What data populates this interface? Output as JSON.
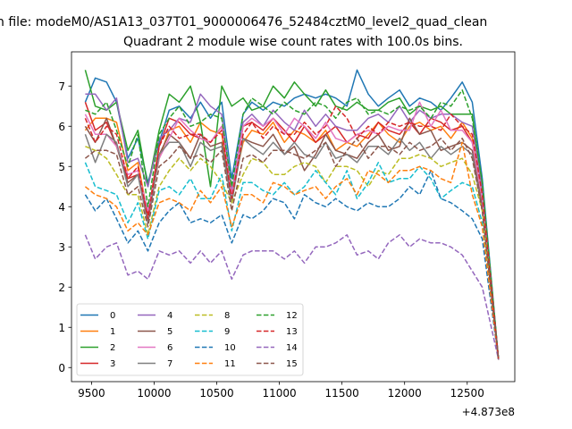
{
  "chart_data": {
    "type": "line",
    "suptitle": "n file: modeM0/AS1A13_037T01_9000006476_52484cztM0_level2_quad_clean",
    "title": "Quadrant 2 module wise count rates with 100.0s bins.",
    "xlabel": "",
    "ylabel": "",
    "x_offset_label": "+4.873e8",
    "xlim": [
      9340,
      12880
    ],
    "ylim": [
      -0.35,
      7.85
    ],
    "x_ticks": [
      9500,
      10000,
      10500,
      11000,
      11500,
      12000,
      12500
    ],
    "x_tick_labels": [
      "9500",
      "10000",
      "10500",
      "11000",
      "11500",
      "12000",
      "12500"
    ],
    "y_ticks": [
      0,
      1,
      2,
      3,
      4,
      5,
      6,
      7
    ],
    "y_tick_labels": [
      "0",
      "1",
      "2",
      "3",
      "4",
      "5",
      "6",
      "7"
    ],
    "grid": false,
    "legend_position": "lower-left",
    "x": [
      9450,
      9530,
      9620,
      9700,
      9790,
      9870,
      9950,
      10040,
      10120,
      10200,
      10290,
      10370,
      10450,
      10540,
      10620,
      10710,
      10780,
      10870,
      10950,
      11040,
      11120,
      11200,
      11290,
      11370,
      11450,
      11540,
      11620,
      11710,
      11790,
      11870,
      11960,
      12040,
      12120,
      12210,
      12290,
      12370,
      12460,
      12540,
      12620,
      12750
    ],
    "series": [
      {
        "name": "0",
        "color": "#1f77b4",
        "dash": "solid",
        "values": [
          6.6,
          7.2,
          7.1,
          6.6,
          5.2,
          5.7,
          4.6,
          5.6,
          6.4,
          6.5,
          6.2,
          6.6,
          6.2,
          6.6,
          4.7,
          6.3,
          6.6,
          6.4,
          6.6,
          6.5,
          6.7,
          6.8,
          6.7,
          6.8,
          6.7,
          6.5,
          7.4,
          6.8,
          6.5,
          6.7,
          6.9,
          6.5,
          6.7,
          6.6,
          6.4,
          6.7,
          7.1,
          6.6,
          4.7,
          0.2
        ]
      },
      {
        "name": "1",
        "color": "#ff7f0e",
        "dash": "solid",
        "values": [
          5.9,
          6.2,
          6.2,
          6.1,
          4.9,
          5.1,
          3.8,
          5.2,
          5.9,
          6.0,
          5.6,
          6.1,
          5.9,
          5.8,
          4.3,
          5.6,
          5.9,
          5.8,
          6.1,
          5.6,
          5.9,
          5.8,
          5.6,
          5.9,
          5.4,
          5.6,
          5.5,
          5.8,
          6.1,
          5.8,
          5.6,
          6.0,
          6.1,
          5.9,
          6.0,
          5.7,
          6.1,
          5.7,
          4.2,
          0.2
        ]
      },
      {
        "name": "2",
        "color": "#2ca02c",
        "dash": "solid",
        "values": [
          7.4,
          6.5,
          6.4,
          6.6,
          5.4,
          5.9,
          4.5,
          5.9,
          6.8,
          6.6,
          7.0,
          6.1,
          4.5,
          7.0,
          6.5,
          6.7,
          6.4,
          6.5,
          7.0,
          6.7,
          7.1,
          6.8,
          6.5,
          6.9,
          6.5,
          6.4,
          6.6,
          6.4,
          6.4,
          6.6,
          6.7,
          6.3,
          6.5,
          6.4,
          6.5,
          6.3,
          6.3,
          6.3,
          4.5,
          0.2
        ]
      },
      {
        "name": "3",
        "color": "#d62728",
        "dash": "solid",
        "values": [
          6.6,
          5.9,
          6.1,
          5.5,
          4.7,
          4.8,
          3.8,
          5.5,
          6.2,
          6.1,
          5.8,
          5.7,
          5.6,
          6.0,
          4.3,
          6.0,
          6.1,
          5.9,
          6.2,
          5.9,
          5.6,
          6.0,
          5.6,
          5.8,
          6.0,
          5.6,
          5.8,
          5.7,
          6.1,
          5.9,
          5.8,
          6.1,
          5.8,
          6.2,
          6.1,
          5.9,
          6.0,
          5.6,
          4.2,
          0.2
        ]
      },
      {
        "name": "4",
        "color": "#9467bd",
        "dash": "solid",
        "values": [
          6.8,
          6.8,
          6.4,
          6.7,
          5.1,
          5.2,
          4.5,
          5.7,
          5.9,
          6.2,
          6.1,
          6.8,
          6.5,
          6.3,
          4.4,
          6.1,
          6.3,
          6.0,
          6.4,
          6.1,
          5.9,
          6.4,
          6.0,
          6.3,
          6.0,
          5.9,
          5.9,
          6.2,
          6.3,
          6.1,
          6.5,
          6.1,
          6.4,
          6.2,
          6.3,
          6.3,
          6.1,
          6.0,
          4.4,
          0.2
        ]
      },
      {
        "name": "5",
        "color": "#8c564b",
        "dash": "solid",
        "values": [
          6.0,
          5.6,
          6.2,
          5.5,
          4.6,
          4.8,
          3.6,
          5.3,
          5.8,
          5.6,
          5.2,
          5.8,
          5.5,
          5.6,
          4.2,
          5.7,
          5.6,
          5.5,
          5.8,
          5.3,
          5.5,
          4.9,
          5.3,
          5.8,
          5.4,
          5.3,
          5.2,
          5.6,
          5.8,
          5.4,
          5.5,
          6.2,
          5.8,
          5.9,
          5.4,
          5.5,
          5.6,
          5.4,
          4.0,
          0.2
        ]
      },
      {
        "name": "6",
        "color": "#e377c2",
        "dash": "solid",
        "values": [
          6.3,
          5.8,
          5.8,
          5.5,
          4.8,
          4.9,
          3.9,
          5.2,
          5.7,
          6.2,
          5.9,
          5.7,
          5.6,
          6.0,
          4.3,
          6.0,
          6.2,
          6.0,
          6.2,
          5.8,
          6.2,
          6.0,
          5.7,
          6.1,
          5.7,
          5.6,
          5.8,
          5.9,
          5.8,
          6.0,
          5.9,
          5.9,
          6.6,
          6.0,
          6.4,
          5.9,
          5.9,
          5.6,
          4.2,
          0.2
        ]
      },
      {
        "name": "7",
        "color": "#7f7f7f",
        "dash": "solid",
        "values": [
          5.8,
          5.1,
          5.8,
          5.6,
          4.5,
          4.8,
          3.6,
          5.3,
          5.6,
          5.6,
          5.0,
          5.6,
          5.4,
          5.5,
          4.1,
          5.7,
          5.5,
          5.3,
          5.6,
          5.3,
          5.6,
          5.3,
          5.2,
          5.6,
          5.2,
          5.3,
          5.1,
          5.5,
          5.5,
          5.3,
          5.7,
          5.4,
          5.6,
          5.2,
          5.5,
          5.3,
          5.5,
          5.3,
          3.9,
          0.2
        ]
      },
      {
        "name": "8",
        "color": "#bcbd22",
        "dash": "dashed",
        "values": [
          5.5,
          5.4,
          5.2,
          4.8,
          4.3,
          4.3,
          3.3,
          4.5,
          4.9,
          5.2,
          4.9,
          5.2,
          5.0,
          4.6,
          4.1,
          4.8,
          5.2,
          5.1,
          4.8,
          4.8,
          5.0,
          5.1,
          5.0,
          4.6,
          5.0,
          5.0,
          4.9,
          4.5,
          4.9,
          4.8,
          5.2,
          5.2,
          5.3,
          5.2,
          5.0,
          5.1,
          5.2,
          4.8,
          3.9,
          0.2
        ]
      },
      {
        "name": "9",
        "color": "#17becf",
        "dash": "dashed",
        "values": [
          5.1,
          4.5,
          4.4,
          4.3,
          3.6,
          4.1,
          3.2,
          4.4,
          4.5,
          4.3,
          4.7,
          4.2,
          4.2,
          4.8,
          3.4,
          4.6,
          4.6,
          4.4,
          4.3,
          4.6,
          4.3,
          4.5,
          4.9,
          4.6,
          4.3,
          4.9,
          4.2,
          4.6,
          5.1,
          4.6,
          4.7,
          4.7,
          5.0,
          4.7,
          4.2,
          4.4,
          4.6,
          4.5,
          3.6,
          0.2
        ]
      },
      {
        "name": "10",
        "color": "#1f77b4",
        "dash": "dashed",
        "values": [
          4.3,
          3.9,
          4.2,
          3.7,
          3.1,
          3.4,
          2.9,
          3.6,
          3.9,
          4.1,
          3.6,
          3.7,
          3.6,
          3.8,
          3.1,
          3.8,
          3.7,
          3.9,
          4.2,
          4.1,
          3.7,
          4.3,
          4.1,
          4.0,
          4.2,
          4.0,
          3.9,
          4.1,
          4.0,
          4.0,
          4.2,
          4.5,
          4.3,
          4.9,
          4.2,
          4.1,
          3.9,
          3.7,
          3.2,
          0.2
        ]
      },
      {
        "name": "11",
        "color": "#ff7f0e",
        "dash": "dashed",
        "values": [
          4.5,
          4.3,
          4.2,
          4.0,
          3.4,
          3.6,
          3.3,
          4.1,
          4.2,
          4.1,
          3.9,
          4.4,
          4.1,
          4.5,
          3.5,
          4.3,
          4.3,
          4.1,
          4.6,
          4.5,
          4.3,
          4.4,
          4.5,
          4.2,
          4.5,
          4.7,
          4.3,
          4.9,
          4.8,
          4.6,
          4.9,
          4.9,
          5.0,
          4.9,
          4.7,
          4.6,
          5.6,
          4.3,
          3.5,
          0.2
        ]
      },
      {
        "name": "12",
        "color": "#2ca02c",
        "dash": "dashed",
        "values": [
          6.4,
          6.3,
          6.6,
          5.9,
          5.0,
          5.8,
          4.0,
          5.8,
          6.2,
          6.5,
          6.0,
          6.1,
          6.3,
          6.2,
          4.5,
          6.3,
          6.7,
          6.5,
          6.3,
          6.6,
          6.4,
          6.3,
          6.6,
          6.5,
          6.2,
          6.6,
          6.7,
          6.3,
          6.4,
          6.3,
          6.5,
          6.4,
          6.5,
          6.2,
          6.6,
          6.5,
          6.9,
          6.2,
          4.6,
          0.2
        ]
      },
      {
        "name": "13",
        "color": "#d62728",
        "dash": "dashed",
        "values": [
          6.2,
          5.6,
          6.0,
          5.8,
          4.7,
          5.0,
          3.7,
          5.5,
          6.0,
          5.7,
          5.8,
          5.8,
          5.6,
          5.9,
          4.2,
          5.8,
          6.1,
          5.7,
          6.0,
          5.8,
          5.8,
          6.1,
          5.8,
          6.0,
          6.5,
          6.2,
          5.7,
          6.0,
          5.8,
          6.1,
          6.0,
          6.1,
          6.0,
          6.0,
          5.9,
          6.3,
          6.0,
          5.8,
          4.3,
          0.2
        ]
      },
      {
        "name": "14",
        "color": "#9467bd",
        "dash": "dashed",
        "values": [
          3.3,
          2.7,
          3.0,
          3.1,
          2.3,
          2.4,
          2.2,
          2.9,
          2.8,
          2.9,
          2.6,
          2.9,
          2.6,
          2.9,
          2.2,
          2.8,
          2.9,
          2.9,
          2.9,
          2.7,
          2.9,
          2.6,
          3.0,
          3.0,
          3.1,
          3.3,
          2.8,
          2.9,
          2.7,
          3.1,
          3.3,
          3.0,
          3.2,
          3.1,
          3.1,
          3.0,
          2.8,
          2.4,
          2.0,
          0.2
        ]
      },
      {
        "name": "15",
        "color": "#8c564b",
        "dash": "dashed",
        "values": [
          5.2,
          5.4,
          5.4,
          5.3,
          4.3,
          4.5,
          3.5,
          5.0,
          5.2,
          5.5,
          5.2,
          5.3,
          5.1,
          5.4,
          3.9,
          5.2,
          5.3,
          5.1,
          5.4,
          5.4,
          5.3,
          5.2,
          5.4,
          5.6,
          5.0,
          5.4,
          5.7,
          5.2,
          5.5,
          5.5,
          5.3,
          5.6,
          5.4,
          5.5,
          5.7,
          5.4,
          5.7,
          5.2,
          3.9,
          0.2
        ]
      }
    ]
  }
}
